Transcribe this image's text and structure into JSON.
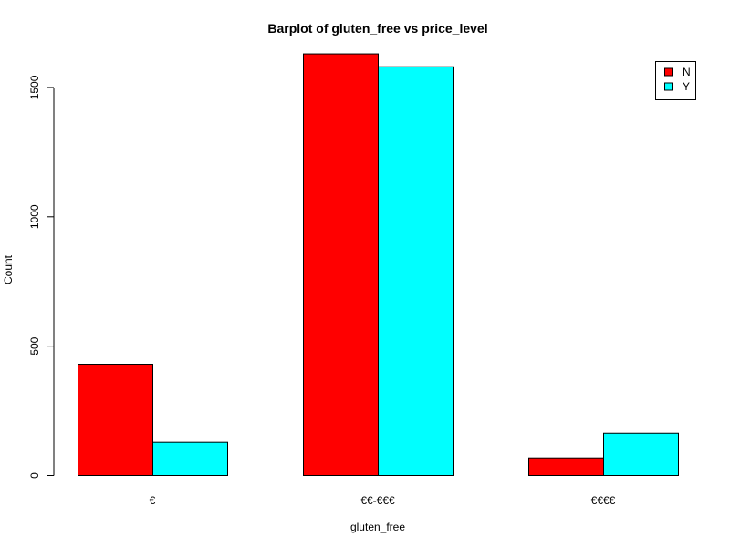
{
  "chart_data": {
    "type": "bar",
    "title": "Barplot of gluten_free vs price_level",
    "xlabel": "gluten_free",
    "ylabel": "Count",
    "categories": [
      "€",
      "€€-€€€",
      "€€€€"
    ],
    "series": [
      {
        "name": "N",
        "values": [
          430,
          1630,
          68
        ],
        "color": "#FF0000"
      },
      {
        "name": "Y",
        "values": [
          128,
          1580,
          163
        ],
        "color": "#00FFFF"
      }
    ],
    "yticks": [
      0,
      500,
      1000,
      1500
    ],
    "ylim": [
      0,
      1690
    ],
    "legend_position": "top-right",
    "grid": false
  }
}
